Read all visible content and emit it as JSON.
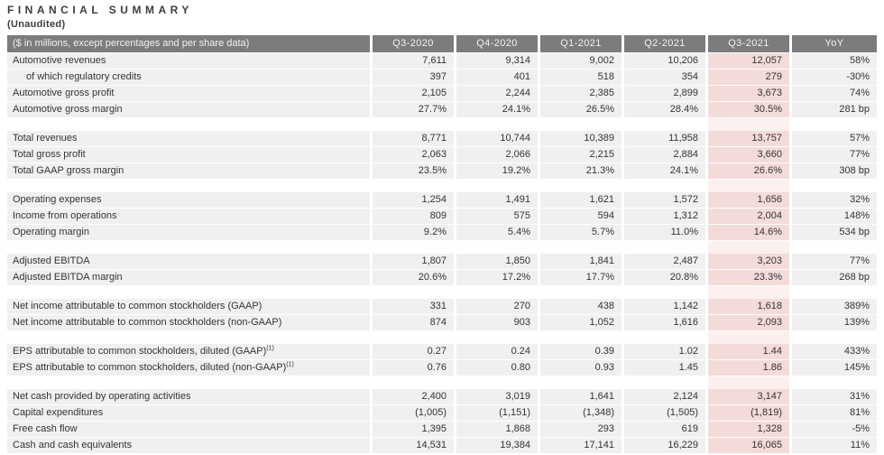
{
  "page": {
    "title": "FINANCIAL SUMMARY",
    "subtitle": "(Unaudited)"
  },
  "colors": {
    "header_bg": "#7c7c7e",
    "header_text": "#f2f2f2",
    "row_bg": "#f0f0f1",
    "highlight_col_bg": "#f3dbda",
    "highlight_gap_bg": "#fbf0ee",
    "body_text": "#333333"
  },
  "table": {
    "label_header": "($ in millions, except percentages and per share data)",
    "columns": [
      "Q3-2020",
      "Q4-2020",
      "Q1-2021",
      "Q2-2021",
      "Q3-2021",
      "YoY"
    ],
    "highlight_column": "Q3-2021",
    "highlight_column_index": 4,
    "sections": [
      {
        "rows": [
          {
            "label": "Automotive revenues",
            "values": [
              "7,611",
              "9,314",
              "9,002",
              "10,206",
              "12,057",
              "58%"
            ]
          },
          {
            "label": "of which regulatory credits",
            "indent": true,
            "values": [
              "397",
              "401",
              "518",
              "354",
              "279",
              "-30%"
            ]
          },
          {
            "label": "Automotive gross profit",
            "values": [
              "2,105",
              "2,244",
              "2,385",
              "2,899",
              "3,673",
              "74%"
            ]
          },
          {
            "label": "Automotive gross margin",
            "values": [
              "27.7%",
              "24.1%",
              "26.5%",
              "28.4%",
              "30.5%",
              "281 bp"
            ]
          }
        ]
      },
      {
        "rows": [
          {
            "label": "Total revenues",
            "values": [
              "8,771",
              "10,744",
              "10,389",
              "11,958",
              "13,757",
              "57%"
            ]
          },
          {
            "label": "Total gross profit",
            "values": [
              "2,063",
              "2,066",
              "2,215",
              "2,884",
              "3,660",
              "77%"
            ]
          },
          {
            "label": "Total GAAP gross margin",
            "values": [
              "23.5%",
              "19.2%",
              "21.3%",
              "24.1%",
              "26.6%",
              "308 bp"
            ]
          }
        ]
      },
      {
        "rows": [
          {
            "label": "Operating expenses",
            "values": [
              "1,254",
              "1,491",
              "1,621",
              "1,572",
              "1,656",
              "32%"
            ]
          },
          {
            "label": "Income from operations",
            "values": [
              "809",
              "575",
              "594",
              "1,312",
              "2,004",
              "148%"
            ]
          },
          {
            "label": "Operating margin",
            "values": [
              "9.2%",
              "5.4%",
              "5.7%",
              "11.0%",
              "14.6%",
              "534 bp"
            ]
          }
        ]
      },
      {
        "rows": [
          {
            "label": "Adjusted EBITDA",
            "values": [
              "1,807",
              "1,850",
              "1,841",
              "2,487",
              "3,203",
              "77%"
            ]
          },
          {
            "label": "Adjusted EBITDA margin",
            "values": [
              "20.6%",
              "17.2%",
              "17.7%",
              "20.8%",
              "23.3%",
              "268 bp"
            ]
          }
        ]
      },
      {
        "rows": [
          {
            "label": "Net income attributable to common stockholders (GAAP)",
            "values": [
              "331",
              "270",
              "438",
              "1,142",
              "1,618",
              "389%"
            ]
          },
          {
            "label": "Net income attributable to common stockholders (non-GAAP)",
            "values": [
              "874",
              "903",
              "1,052",
              "1,616",
              "2,093",
              "139%"
            ]
          }
        ]
      },
      {
        "rows": [
          {
            "label": "EPS attributable to common stockholders, diluted (GAAP)",
            "sup": "(1)",
            "values": [
              "0.27",
              "0.24",
              "0.39",
              "1.02",
              "1.44",
              "433%"
            ]
          },
          {
            "label": "EPS attributable to common stockholders, diluted (non-GAAP)",
            "sup": "(1)",
            "values": [
              "0.76",
              "0.80",
              "0.93",
              "1.45",
              "1.86",
              "145%"
            ]
          }
        ]
      },
      {
        "rows": [
          {
            "label": "Net cash provided by operating activities",
            "values": [
              "2,400",
              "3,019",
              "1,641",
              "2,124",
              "3,147",
              "31%"
            ]
          },
          {
            "label": "Capital expenditures",
            "values": [
              "(1,005)",
              "(1,151)",
              "(1,348)",
              "(1,505)",
              "(1,819)",
              "81%"
            ]
          },
          {
            "label": "Free cash flow",
            "values": [
              "1,395",
              "1,868",
              "293",
              "619",
              "1,328",
              "-5%"
            ]
          },
          {
            "label": "Cash and cash equivalents",
            "values": [
              "14,531",
              "19,384",
              "17,141",
              "16,229",
              "16,065",
              "11%"
            ]
          }
        ]
      }
    ]
  }
}
